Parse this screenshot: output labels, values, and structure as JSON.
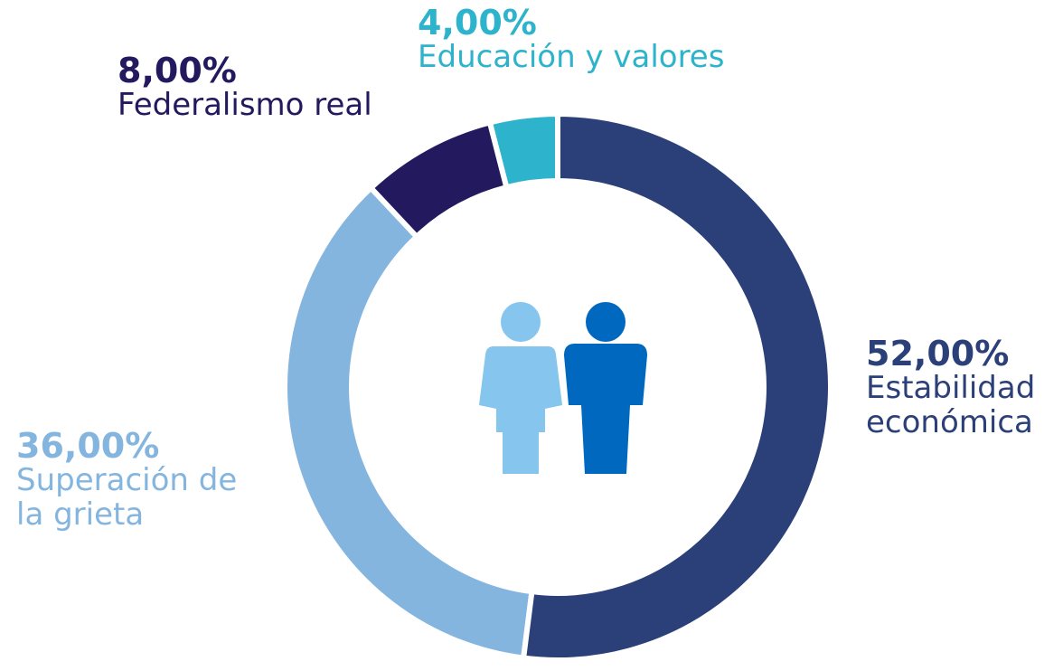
{
  "chart_data": {
    "type": "donut",
    "categories": [
      "Estabilidad económica",
      "Superación de la grieta",
      "Federalismo real",
      "Educación y valores"
    ],
    "values": [
      52,
      36,
      8,
      4
    ],
    "value_labels": [
      "52,00%",
      "36,00%",
      "8,00%",
      "4,00%"
    ],
    "colors": [
      "#2b3f78",
      "#84b5df",
      "#23195f",
      "#2db3cc"
    ]
  }
}
